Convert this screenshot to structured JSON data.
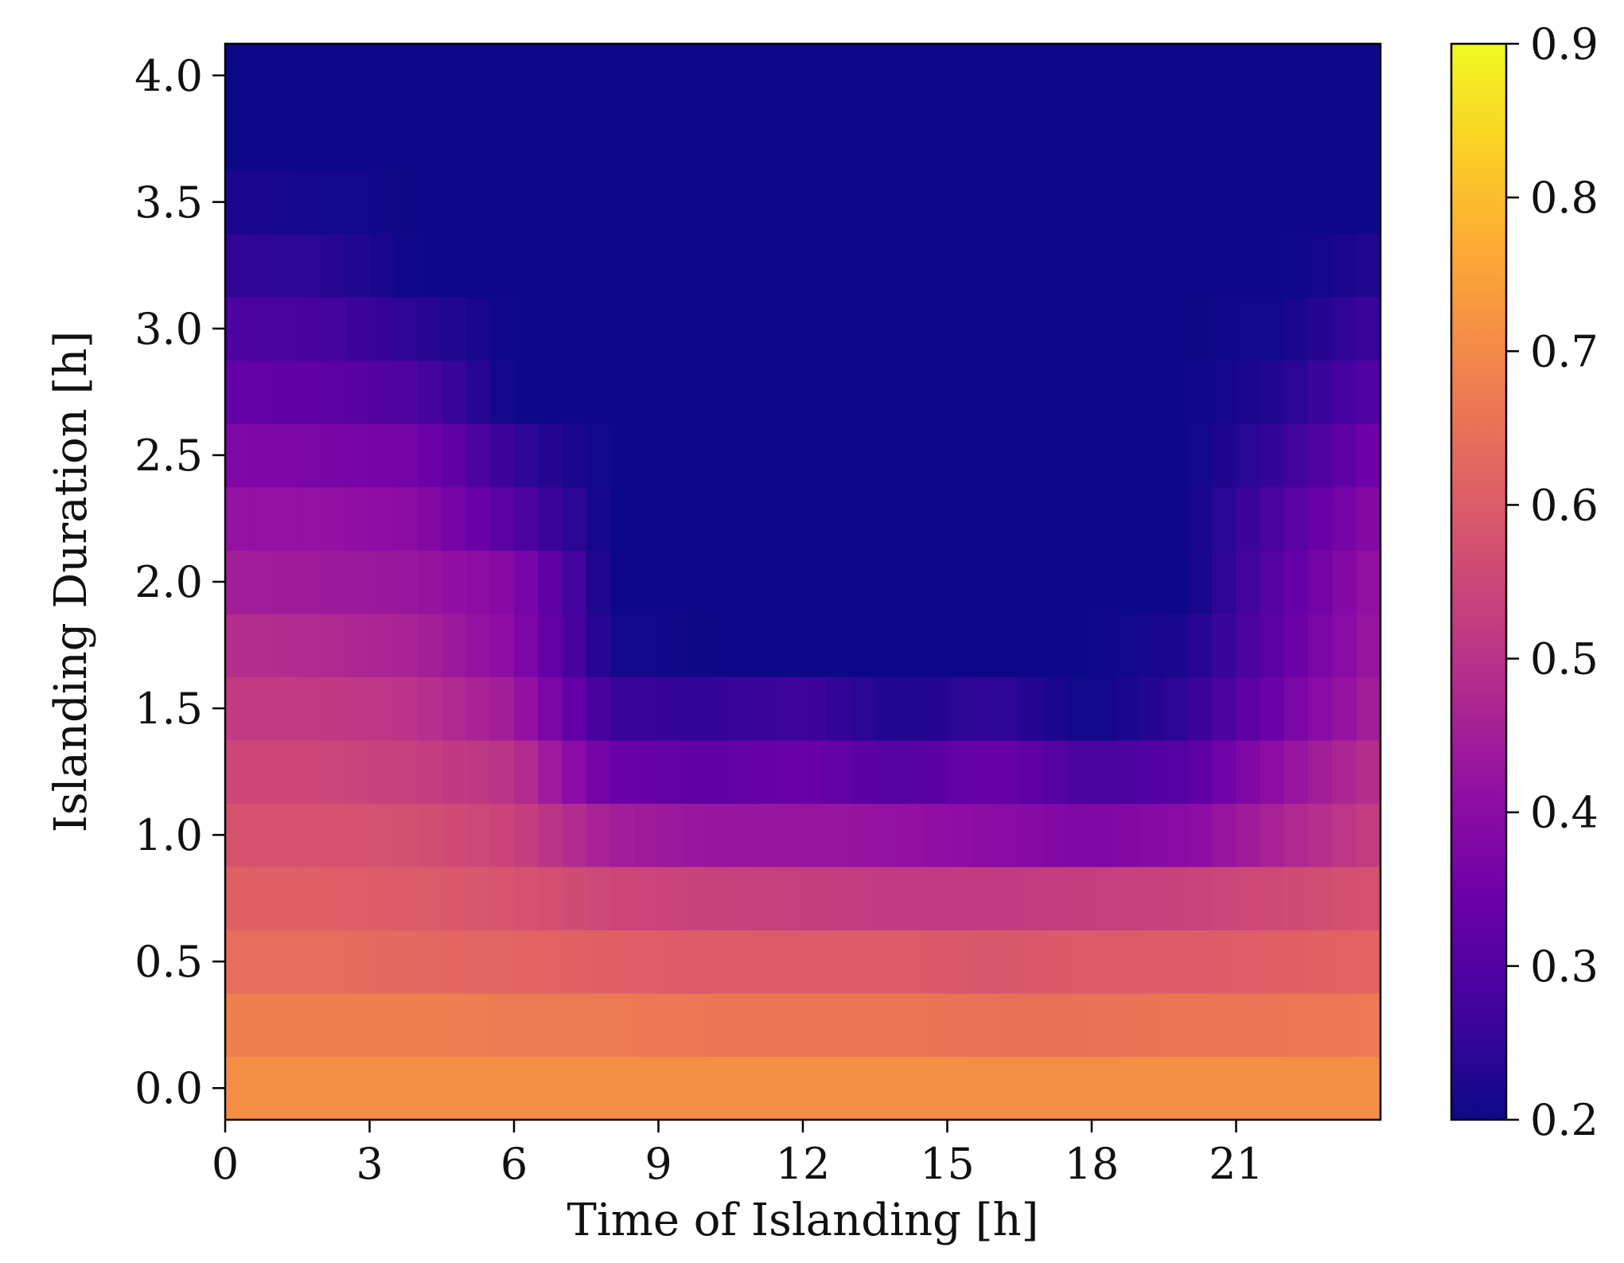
{
  "chart_data": {
    "type": "heatmap",
    "xlabel": "Time of Islanding [h]",
    "ylabel": "Islanding Duration [h]",
    "x": {
      "start": 0,
      "step": 0.5,
      "count": 48,
      "range": [
        0,
        24
      ],
      "ticks": [
        0,
        3,
        6,
        9,
        12,
        15,
        18,
        21
      ],
      "tick_labels": [
        "0",
        "3",
        "6",
        "9",
        "12",
        "15",
        "18",
        "21"
      ]
    },
    "y": {
      "start": 0,
      "step": 0.25,
      "count": 17,
      "range": [
        -0.125,
        4.125
      ],
      "ticks": [
        0.0,
        0.5,
        1.0,
        1.5,
        2.0,
        2.5,
        3.0,
        3.5,
        4.0
      ],
      "tick_labels": [
        "0.0",
        "0.5",
        "1.0",
        "1.5",
        "2.0",
        "2.5",
        "3.0",
        "3.5",
        "4.0"
      ]
    },
    "colorbar": {
      "colormap": "plasma",
      "range": [
        0.2,
        0.9
      ],
      "ticks": [
        0.2,
        0.3,
        0.4,
        0.5,
        0.6,
        0.7,
        0.8,
        0.9
      ],
      "tick_labels": [
        "0.2",
        "0.3",
        "0.4",
        "0.5",
        "0.6",
        "0.7",
        "0.8",
        "0.9"
      ]
    },
    "anchors_note_x": [
      0,
      2,
      4,
      6,
      8,
      10,
      12,
      14,
      16,
      18,
      20,
      22,
      24
    ],
    "rows": [
      {
        "duration": 0.0,
        "anchors": [
          0.71,
          0.71,
          0.71,
          0.71,
          0.71,
          0.71,
          0.71,
          0.71,
          0.71,
          0.71,
          0.71,
          0.71,
          0.71
        ]
      },
      {
        "duration": 0.25,
        "anchors": [
          0.68,
          0.68,
          0.68,
          0.67,
          0.67,
          0.66,
          0.66,
          0.66,
          0.65,
          0.65,
          0.66,
          0.66,
          0.67
        ]
      },
      {
        "duration": 0.5,
        "anchors": [
          0.64,
          0.64,
          0.63,
          0.62,
          0.61,
          0.6,
          0.6,
          0.6,
          0.59,
          0.6,
          0.6,
          0.61,
          0.62
        ]
      },
      {
        "duration": 0.75,
        "anchors": [
          0.61,
          0.61,
          0.6,
          0.58,
          0.55,
          0.54,
          0.53,
          0.52,
          0.52,
          0.53,
          0.54,
          0.56,
          0.58
        ]
      },
      {
        "duration": 1.0,
        "anchors": [
          0.58,
          0.58,
          0.57,
          0.54,
          0.45,
          0.43,
          0.43,
          0.42,
          0.4,
          0.38,
          0.4,
          0.47,
          0.53
        ]
      },
      {
        "duration": 1.25,
        "anchors": [
          0.55,
          0.55,
          0.53,
          0.5,
          0.34,
          0.32,
          0.34,
          0.3,
          0.34,
          0.28,
          0.31,
          0.42,
          0.5
        ]
      },
      {
        "duration": 1.5,
        "anchors": [
          0.52,
          0.52,
          0.5,
          0.44,
          0.26,
          0.25,
          0.27,
          0.22,
          0.25,
          0.2,
          0.25,
          0.36,
          0.46
        ]
      },
      {
        "duration": 1.75,
        "anchors": [
          0.49,
          0.48,
          0.46,
          0.4,
          0.21,
          0.2,
          0.2,
          0.2,
          0.2,
          0.2,
          0.22,
          0.33,
          0.44
        ]
      },
      {
        "duration": 2.0,
        "anchors": [
          0.45,
          0.44,
          0.43,
          0.39,
          0.2,
          0.2,
          0.2,
          0.2,
          0.2,
          0.2,
          0.2,
          0.32,
          0.43
        ]
      },
      {
        "duration": 2.25,
        "anchors": [
          0.42,
          0.42,
          0.4,
          0.3,
          0.2,
          0.2,
          0.2,
          0.2,
          0.2,
          0.2,
          0.2,
          0.3,
          0.4
        ]
      },
      {
        "duration": 2.5,
        "anchors": [
          0.38,
          0.37,
          0.36,
          0.25,
          0.2,
          0.2,
          0.2,
          0.2,
          0.2,
          0.2,
          0.2,
          0.26,
          0.36
        ]
      },
      {
        "duration": 2.75,
        "anchors": [
          0.33,
          0.32,
          0.29,
          0.2,
          0.2,
          0.2,
          0.2,
          0.2,
          0.2,
          0.2,
          0.2,
          0.23,
          0.31
        ]
      },
      {
        "duration": 3.0,
        "anchors": [
          0.29,
          0.28,
          0.24,
          0.2,
          0.2,
          0.2,
          0.2,
          0.2,
          0.2,
          0.2,
          0.2,
          0.21,
          0.27
        ]
      },
      {
        "duration": 3.25,
        "anchors": [
          0.25,
          0.24,
          0.2,
          0.2,
          0.2,
          0.2,
          0.2,
          0.2,
          0.2,
          0.2,
          0.2,
          0.2,
          0.23
        ]
      },
      {
        "duration": 3.5,
        "anchors": [
          0.22,
          0.21,
          0.2,
          0.2,
          0.2,
          0.2,
          0.2,
          0.2,
          0.2,
          0.2,
          0.2,
          0.2,
          0.2
        ]
      },
      {
        "duration": 3.75,
        "anchors": [
          0.2,
          0.2,
          0.2,
          0.2,
          0.2,
          0.2,
          0.2,
          0.2,
          0.2,
          0.2,
          0.2,
          0.2,
          0.2
        ]
      },
      {
        "duration": 4.0,
        "anchors": [
          0.2,
          0.2,
          0.2,
          0.2,
          0.2,
          0.2,
          0.2,
          0.2,
          0.2,
          0.2,
          0.2,
          0.2,
          0.2
        ]
      }
    ]
  }
}
